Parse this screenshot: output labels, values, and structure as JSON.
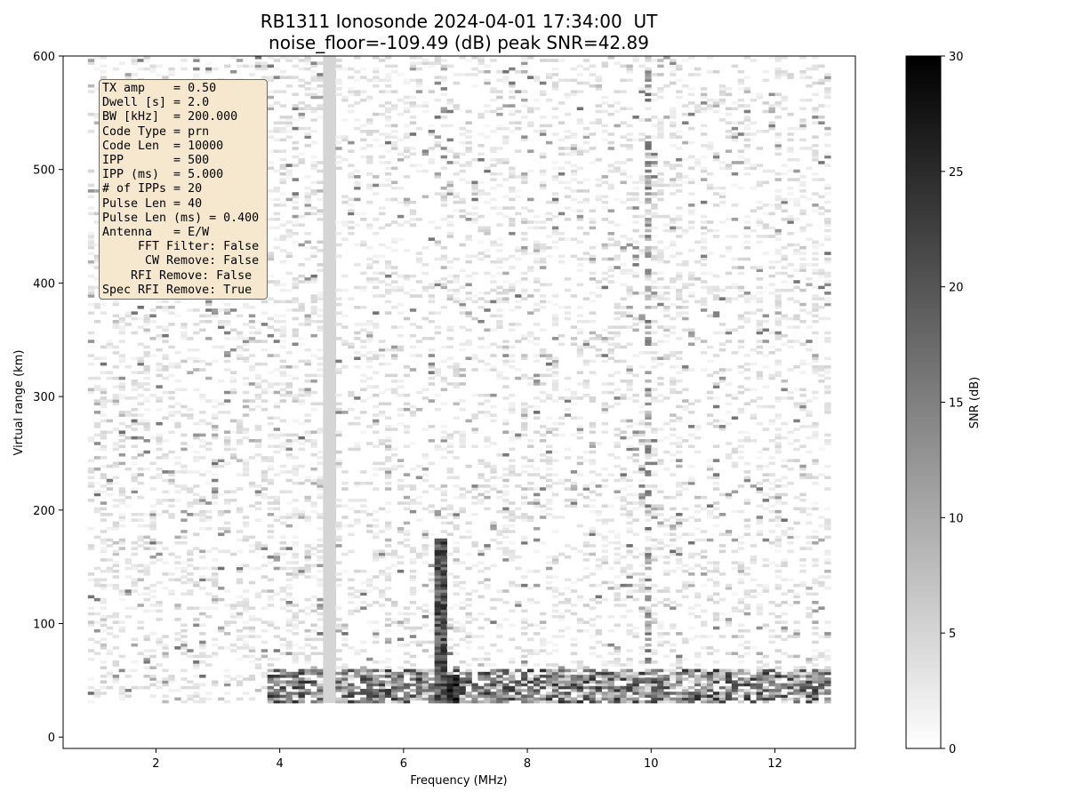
{
  "title": {
    "line1": "RB1311 Ionosonde 2024-04-01 17:34:00  UT",
    "line2": "noise_floor=-109.49 (dB) peak SNR=42.89"
  },
  "params": [
    "TX amp    = 0.50",
    "Dwell [s] = 2.0",
    "BW [kHz]  = 200.000",
    "Code Type = prn",
    "Code Len  = 10000",
    "IPP       = 500",
    "IPP (ms)  = 5.000",
    "# of IPPs = 20",
    "Pulse Len = 40",
    "Pulse Len (ms) = 0.400",
    "Antenna   = E/W",
    "     FFT Filter: False",
    "      CW Remove: False",
    "    RFI Remove: False",
    "Spec RFI Remove: True"
  ],
  "chart_data": {
    "type": "heatmap",
    "title": "RB1311 Ionosonde 2024-04-01 17:34:00  UT\nnoise_floor=-109.49 (dB) peak SNR=42.89",
    "xlabel": "Frequency (MHz)",
    "ylabel": "Virtual range (km)",
    "xlim": [
      0.5,
      13.3
    ],
    "ylim": [
      -10,
      600
    ],
    "xticks": [
      2,
      4,
      6,
      8,
      10,
      12
    ],
    "yticks": [
      0,
      100,
      200,
      300,
      400,
      500,
      600
    ],
    "x_data_range": [
      0.9,
      12.9
    ],
    "y_data_range": [
      30,
      600
    ],
    "colormap": "gray_r",
    "colorbar": {
      "label": "SNR (dB)",
      "min": 0,
      "max": 30,
      "ticks": [
        0,
        5,
        10,
        15,
        20,
        25,
        30
      ]
    },
    "features": [
      {
        "name": "CW interference line",
        "x_mhz": 4.8,
        "y_range_km": [
          30,
          600
        ],
        "snr_db": 5
      },
      {
        "name": "strong echo band",
        "x_range_mhz": [
          6.55,
          6.75
        ],
        "y_range_km": [
          30,
          173
        ],
        "snr_db": 22
      },
      {
        "name": "strong echo core",
        "x_range_mhz": [
          6.7,
          6.95
        ],
        "y_range_km": [
          30,
          50
        ],
        "snr_db": 30
      },
      {
        "name": "low-range returns",
        "x_range_mhz": [
          3.8,
          12.9
        ],
        "y_range_km": [
          30,
          60
        ],
        "snr_db": 18
      },
      {
        "name": "vertical streak",
        "x_mhz": 10.0,
        "y_range_km": [
          30,
          590
        ],
        "snr_db": 12
      }
    ]
  }
}
